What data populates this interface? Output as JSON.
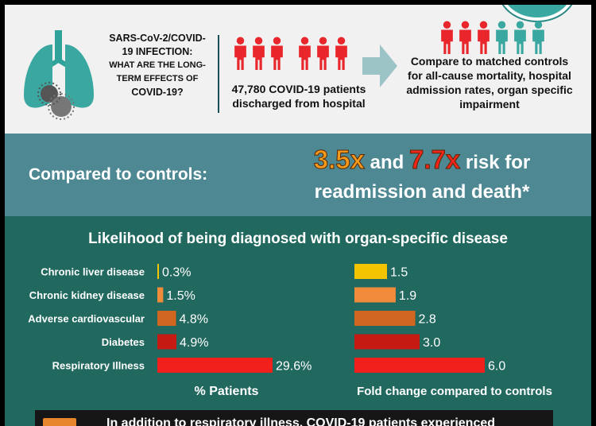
{
  "intro": {
    "lines": [
      "SARS-CoV-2/COVID-",
      "19 INFECTION:",
      "WHAT ARE THE LONG-",
      "TERM EFFECTS OF",
      "COVID-19?"
    ],
    "patients_line1": "47,780 COVID-19 patients",
    "patients_line2": "discharged from hospital",
    "compare_lines": [
      "Compare to matched controls",
      "for all-cause mortality, hospital",
      "admission rates, organ specific",
      "impairment"
    ]
  },
  "colors": {
    "teal_dark": "#21685f",
    "banner": "#4d8893",
    "person_red": "#e8262b",
    "person_teal": "#3aa8a1",
    "bar_liver": "#f5c400",
    "bar_kidney": "#f08b3c",
    "bar_cardio": "#d0661f",
    "bar_diabetes": "#c41a12",
    "bar_resp": "#f2201c"
  },
  "banner": {
    "left": "Compared to controls:",
    "mult1": "3.5x",
    "and": "and",
    "mult2": "7.7x",
    "after": "risk for",
    "line2": "readmission and death*"
  },
  "footer": {
    "text": "In addition to respiratory illness, COVID-19 patients experienced"
  },
  "chart_data": {
    "type": "bar",
    "title": "Likelihood of being diagnosed with organ-specific disease",
    "categories": [
      "Chronic liver disease",
      "Chronic kidney disease",
      "Adverse cardiovascular",
      "Diabetes",
      "Respiratory Illness"
    ],
    "series": [
      {
        "values": [
          0.3,
          1.5,
          4.8,
          4.9,
          29.6
        ],
        "labels": [
          "0.3%",
          "1.5%",
          "4.8%",
          "4.9%",
          "29.6%"
        ]
      },
      {
        "values": [
          1.5,
          1.9,
          2.8,
          3.0,
          6.0
        ],
        "labels": [
          "1.5",
          "1.9",
          "2.8",
          "3.0",
          "6.0"
        ]
      }
    ],
    "xlabel_left": "% Patients",
    "xlabel_right": "Fold change compared to controls",
    "orientation": "horizontal"
  }
}
